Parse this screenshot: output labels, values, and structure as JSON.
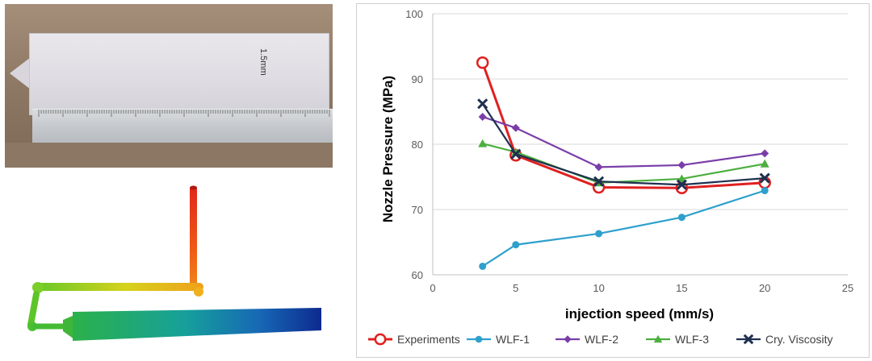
{
  "photo": {
    "handwritten_note": "1.5mm"
  },
  "chart_data": {
    "type": "line",
    "title": "",
    "xlabel": "injection speed (mm/s)",
    "ylabel": "Nozzle Pressure (MPa)",
    "xlim": [
      0,
      25
    ],
    "ylim": [
      60,
      100
    ],
    "xticks": [
      0,
      5,
      10,
      15,
      20,
      25
    ],
    "yticks": [
      60,
      70,
      80,
      90,
      100
    ],
    "grid": "horizontal",
    "legend_position": "bottom",
    "series": [
      {
        "name": "Experiments",
        "color": "#e02020",
        "marker": "circle-open",
        "x": [
          3,
          5,
          10,
          15,
          20
        ],
        "y": [
          92.5,
          78.3,
          73.4,
          73.3,
          74.1
        ]
      },
      {
        "name": "WLF-1",
        "color": "#2ea0cc",
        "marker": "circle",
        "x": [
          3,
          5,
          10,
          15,
          20
        ],
        "y": [
          61.3,
          64.6,
          66.3,
          68.8,
          72.9
        ]
      },
      {
        "name": "WLF-2",
        "color": "#7a3ea8",
        "marker": "diamond",
        "x": [
          3,
          5,
          10,
          15,
          20
        ],
        "y": [
          84.2,
          82.5,
          76.5,
          76.8,
          78.6
        ]
      },
      {
        "name": "WLF-3",
        "color": "#4caf3f",
        "marker": "triangle",
        "x": [
          3,
          5,
          10,
          15,
          20
        ],
        "y": [
          80.1,
          78.8,
          74.1,
          74.7,
          77.0
        ]
      },
      {
        "name": "Cry. Viscosity",
        "color": "#1f3050",
        "marker": "x",
        "x": [
          3,
          5,
          10,
          15,
          20
        ],
        "y": [
          86.2,
          78.5,
          74.3,
          73.8,
          74.8
        ]
      }
    ]
  }
}
